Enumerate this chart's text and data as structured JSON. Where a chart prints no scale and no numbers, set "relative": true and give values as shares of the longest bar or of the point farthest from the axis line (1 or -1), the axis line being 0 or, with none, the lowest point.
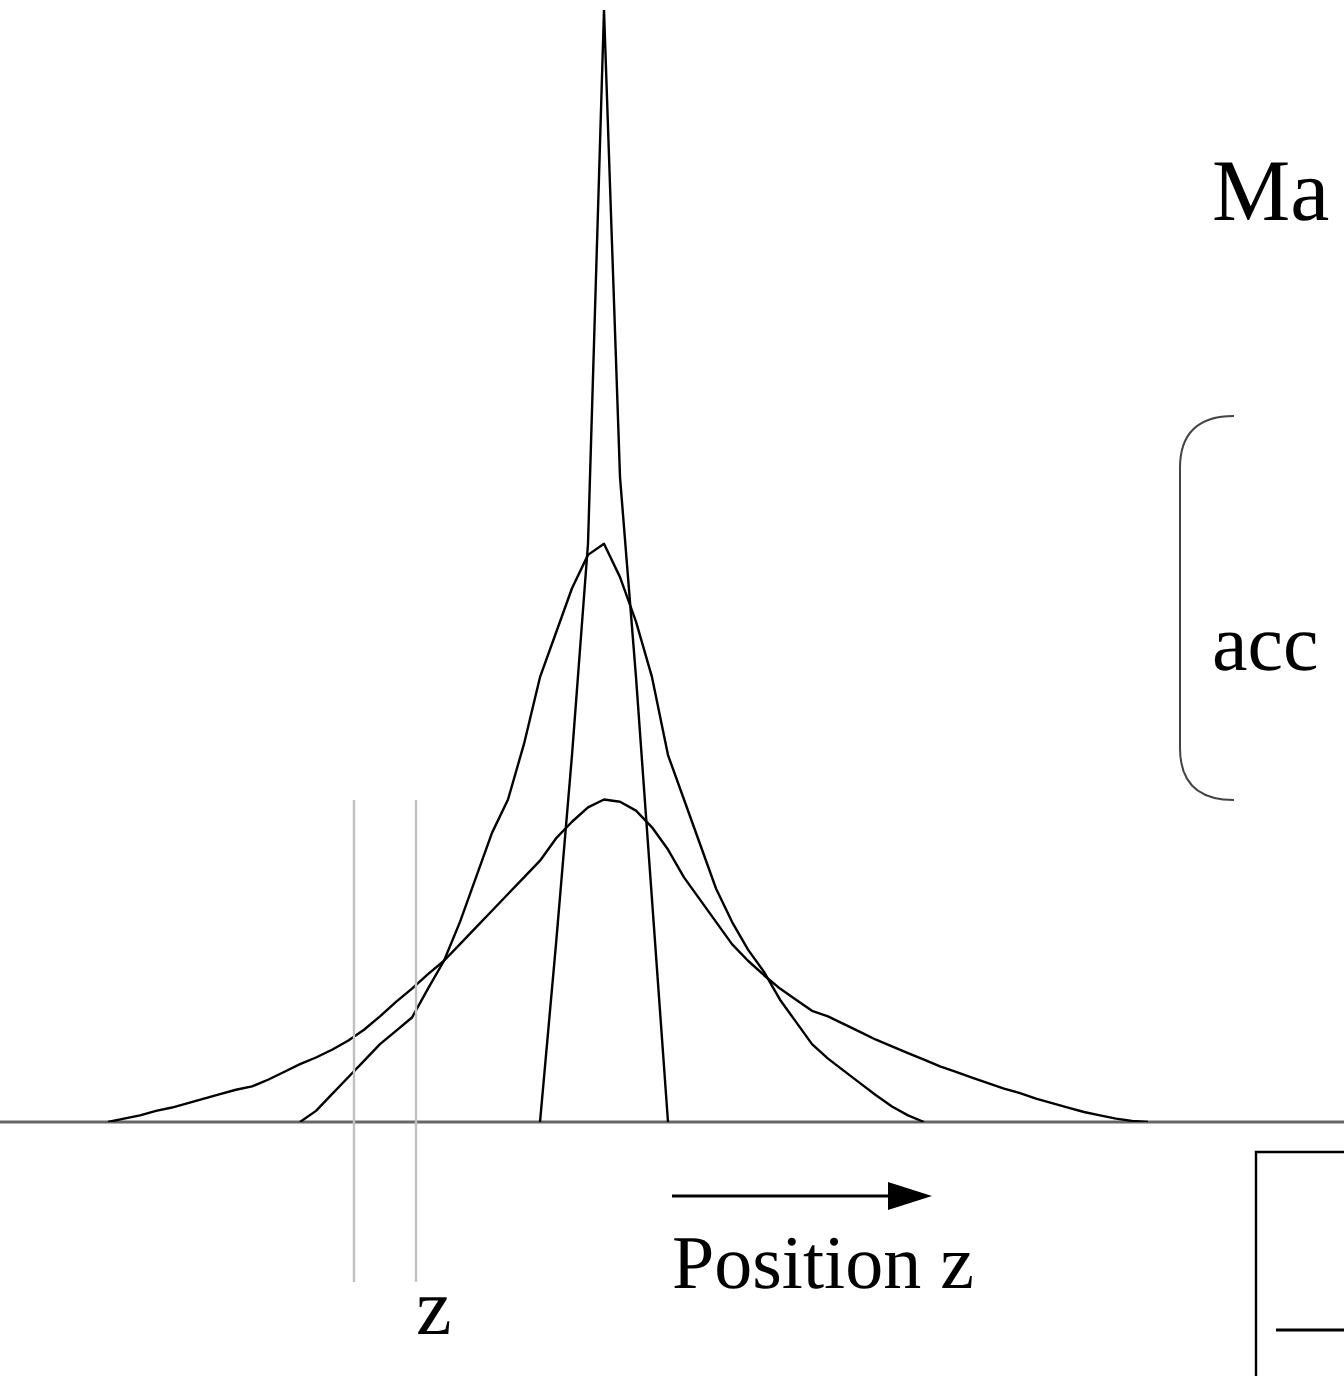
{
  "chart_data": {
    "type": "line",
    "relative": true,
    "xlabel": "Position z",
    "grid": false,
    "legend": false,
    "marker": "none",
    "line_style": "solid",
    "categories": [
      null,
      null,
      null,
      null,
      null,
      null,
      null,
      null,
      null,
      null,
      null,
      null,
      null,
      null,
      null,
      null,
      null,
      null,
      null,
      null,
      null,
      null,
      null,
      null,
      null,
      null,
      null,
      null,
      null,
      null,
      null,
      null,
      null,
      null,
      null,
      null,
      null,
      null,
      null,
      null,
      null,
      null,
      null,
      null,
      null,
      null,
      null,
      null,
      null,
      null,
      null,
      null,
      null,
      null,
      null,
      null,
      null,
      null,
      null,
      null,
      null,
      null,
      null,
      null,
      null,
      null,
      null,
      null,
      null,
      null,
      null,
      null,
      null,
      null,
      null,
      null,
      null,
      null,
      null,
      null,
      null,
      null,
      null
    ],
    "series": [
      {
        "color": "#000000",
        "values": [
          null,
          null,
          null,
          null,
          null,
          null,
          null,
          null,
          null,
          null,
          null,
          null,
          null,
          null,
          null,
          null,
          null,
          null,
          null,
          null,
          null,
          null,
          null,
          null,
          null,
          null,
          null,
          null,
          null,
          null,
          null,
          null,
          null,
          0,
          0.16,
          0.33,
          0.52,
          1,
          0.58,
          0.4,
          0.2,
          0,
          null,
          null,
          null,
          null,
          null,
          null,
          null,
          null,
          null,
          null,
          null,
          null,
          null,
          null,
          null,
          null,
          null,
          null,
          null,
          null,
          null,
          null,
          null,
          null,
          null,
          null,
          null,
          null,
          null,
          null,
          null,
          null,
          null,
          null,
          null,
          null,
          null,
          null,
          null,
          null,
          null
        ]
      },
      {
        "color": "#000000",
        "values": [
          null,
          null,
          null,
          null,
          null,
          null,
          null,
          null,
          null,
          null,
          null,
          null,
          null,
          null,
          null,
          null,
          null,
          null,
          0,
          0.01,
          0.025,
          0.04,
          0.055,
          0.07,
          0.082,
          0.094,
          0.12,
          0.145,
          0.18,
          0.22,
          0.26,
          0.29,
          0.34,
          0.4,
          0.44,
          0.48,
          0.51,
          0.52,
          0.49,
          0.45,
          0.4,
          0.33,
          0.29,
          0.25,
          0.21,
          0.18,
          0.155,
          0.135,
          0.11,
          0.09,
          0.07,
          0.057,
          0.046,
          0.035,
          0.024,
          0.014,
          0.006,
          0,
          null,
          null,
          null,
          null,
          null,
          null,
          null,
          null,
          null,
          null,
          null,
          null,
          null,
          null,
          null,
          null,
          null,
          null,
          null,
          null,
          null,
          null,
          null,
          null,
          null
        ]
      },
      {
        "color": "#000000",
        "values": [
          null,
          null,
          null,
          null,
          null,
          null,
          0,
          0.003,
          0.006,
          0.01,
          0.013,
          0.017,
          0.021,
          0.025,
          0.029,
          0.032,
          0.038,
          0.045,
          0.052,
          0.058,
          0.065,
          0.073,
          0.083,
          0.095,
          0.108,
          0.12,
          0.133,
          0.145,
          0.16,
          0.175,
          0.19,
          0.205,
          0.22,
          0.235,
          0.255,
          0.27,
          0.283,
          0.29,
          0.288,
          0.28,
          0.265,
          0.245,
          0.22,
          0.2,
          0.18,
          0.16,
          0.145,
          0.132,
          0.12,
          0.11,
          0.1,
          0.095,
          0.088,
          0.081,
          0.074,
          0.068,
          0.062,
          0.056,
          0.05,
          0.045,
          0.04,
          0.035,
          0.03,
          0.026,
          0.021,
          0.017,
          0.013,
          0.009,
          0.006,
          0.003,
          0.001,
          0,
          null,
          null,
          null,
          null,
          null,
          null,
          null,
          null,
          null,
          null,
          null
        ]
      }
    ],
    "annotations": [
      "z",
      "Ma",
      "acc"
    ]
  }
}
